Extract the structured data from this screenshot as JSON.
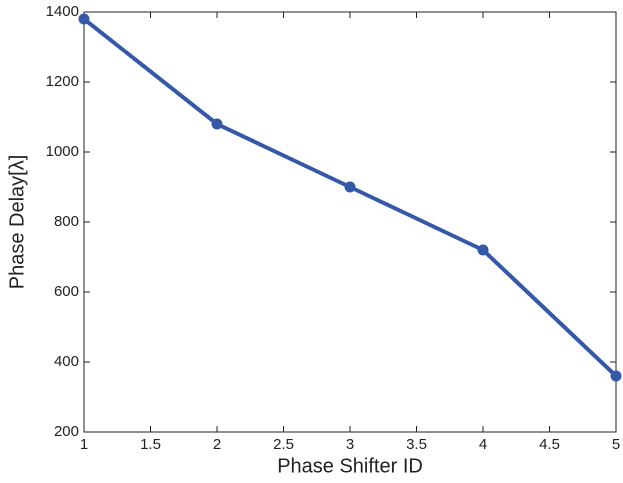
{
  "chart_data": {
    "type": "line",
    "x": [
      1,
      2,
      3,
      4,
      5
    ],
    "series": [
      {
        "name": "Phase Delay",
        "color": "#3558a8",
        "values": [
          1380,
          1080,
          900,
          720,
          360
        ]
      }
    ],
    "xlabel": "Phase Shifter ID",
    "ylabel": "Phase Delay[λ]",
    "xlim": [
      1,
      5
    ],
    "xticks": [
      1,
      1.5,
      2,
      2.5,
      3,
      3.5,
      4,
      4.5,
      5
    ],
    "ylim": [
      200,
      1400
    ],
    "yticks": [
      200,
      400,
      600,
      800,
      1000,
      1200,
      1400
    ],
    "grid": false
  }
}
